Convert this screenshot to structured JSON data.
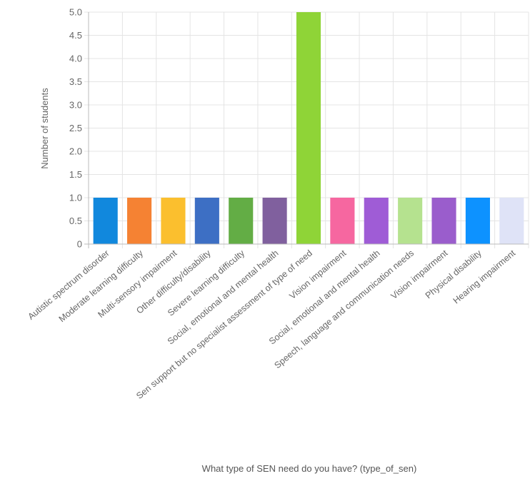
{
  "chart_data": {
    "type": "bar",
    "categories": [
      "Autistic spectrum disorder",
      "Moderate learning difficulty",
      "Multi-sensory impairment",
      "Other difficulty/disability",
      "Severe learning difficulty",
      "Social, emotional and mental health",
      "Sen support but no specialist assessment of type of need",
      "Vision impairment",
      "Social, emotional and mental health",
      "Speech, language and communication needs",
      "Vision impairment",
      "Physical disability",
      "Hearing impairment"
    ],
    "values": [
      1,
      1,
      1,
      1,
      1,
      1,
      5,
      1,
      1,
      1,
      1,
      1,
      1
    ],
    "colors": [
      "#1188dd",
      "#f58233",
      "#fbbf2e",
      "#3d6fc4",
      "#63ad45",
      "#80609e",
      "#8fd437",
      "#f667a0",
      "#9f5cd6",
      "#b5e28f",
      "#9a5dcc",
      "#0d92ff",
      "#dfe3f7"
    ],
    "ylabel": "Number of students",
    "xlabel": "What type of SEN need do you have? (type_of_sen)",
    "ylim": [
      0,
      5
    ],
    "yticks": [
      "0",
      "0.5",
      "1.0",
      "1.5",
      "2.0",
      "2.5",
      "3.0",
      "3.5",
      "4.0",
      "4.5",
      "5.0"
    ],
    "ytick_values": [
      0,
      0.5,
      1,
      1.5,
      2,
      2.5,
      3,
      3.5,
      4,
      4.5,
      5
    ],
    "grid": true,
    "legend": "none"
  }
}
